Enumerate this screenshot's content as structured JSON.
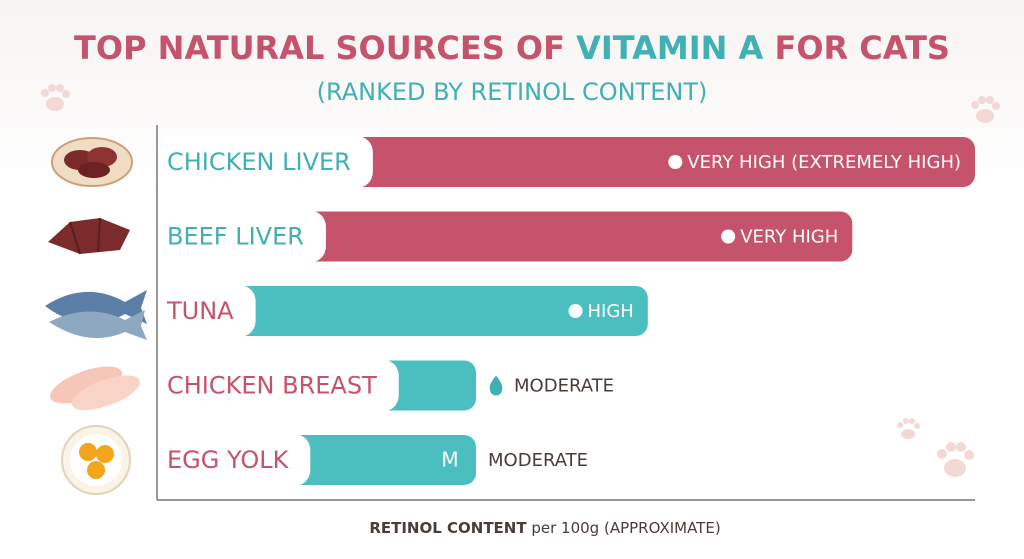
{
  "chart_data": {
    "type": "bar",
    "orientation": "horizontal",
    "title_parts": [
      "TOP NATURAL SOURCES OF ",
      "VITAMIN A",
      " FOR CATS"
    ],
    "title_colors": [
      "#c4536b",
      "#3fb0b3",
      "#c4536b"
    ],
    "subtitle": "(RANKED BY RETINOL CONTENT)",
    "x_label_parts": [
      "RETINOL CONTENT",
      " per 100g (APPROXIMATE)"
    ],
    "categories": [
      "CHICKEN LIVER",
      "BEEF LIVER",
      "TUNA",
      "CHICKEN BREAST",
      "EGG YOLK"
    ],
    "category_colors": [
      "#3fb0b3",
      "#3fb0b3",
      "#c4536b",
      "#c4536b",
      "#c4536b"
    ],
    "values": [
      100,
      85,
      60,
      39,
      39
    ],
    "value_labels": [
      "VERY HIGH (EXTREMELY HIGH)",
      "VERY HIGH",
      "HIGH",
      "MODERATE",
      "MODERATE"
    ],
    "colors": [
      "#c4536b",
      "#c4536b",
      "#4bbfbf",
      "#4bbfbf",
      "#4bbfbf"
    ],
    "badges": [
      null,
      null,
      null,
      null,
      "M"
    ],
    "xlim": [
      0,
      100
    ]
  }
}
